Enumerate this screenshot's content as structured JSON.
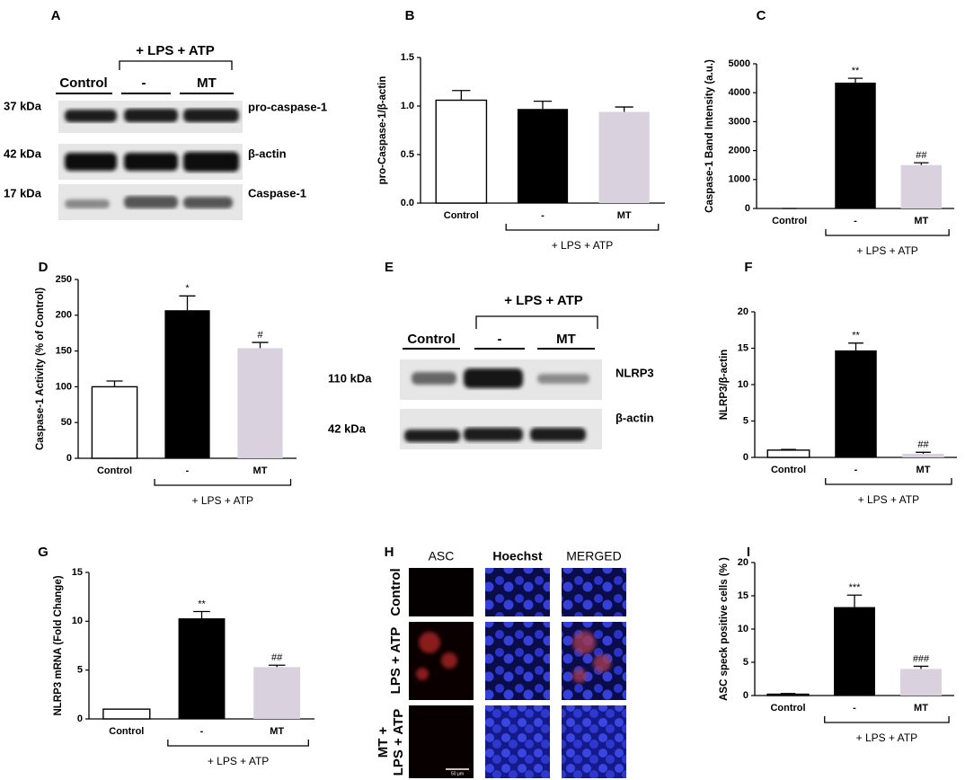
{
  "western_blot_A": {
    "panel": "A",
    "group": "+ LPS + ATP",
    "lanes": [
      "Control",
      "-",
      "MT"
    ],
    "rows": [
      {
        "size": "37 kDa",
        "protein": "pro-caspase-1"
      },
      {
        "size": "42 kDa",
        "protein": "β-actin"
      },
      {
        "size": "17 kDa",
        "protein": "Caspase-1"
      }
    ]
  },
  "western_blot_E": {
    "panel": "E",
    "group": "+ LPS + ATP",
    "lanes": [
      "Control",
      "-",
      "MT"
    ],
    "rows": [
      {
        "size": "110 kDa",
        "protein": "NLRP3"
      },
      {
        "size": "42 kDa",
        "protein": "β-actin"
      }
    ]
  },
  "microscopy_H": {
    "panel": "H",
    "columns": [
      "ASC",
      "Hoechst",
      "MERGED"
    ],
    "rows": [
      [
        "Control"
      ],
      [
        "LPS + ATP"
      ],
      [
        "MT +",
        "LPS + ATP"
      ]
    ],
    "scale_bar": "50 µm"
  },
  "chart_data": [
    {
      "type": "bar",
      "panel": "B",
      "ylabel": "pro-Caspase-1/β-actin",
      "categories": [
        "Control",
        "-",
        "MT"
      ],
      "group_label": "+ LPS + ATP",
      "values": [
        1.06,
        0.97,
        0.94
      ],
      "errors": [
        0.1,
        0.08,
        0.05
      ],
      "annotations": [
        null,
        null,
        null
      ],
      "colors": [
        "#ffffff",
        "#000000",
        "#d9d2de"
      ],
      "ylim": [
        0,
        1.5
      ],
      "yticks": [
        {
          "value": 0,
          "label": "0.0"
        },
        {
          "value": 0.5,
          "label": "0.5"
        },
        {
          "value": 1,
          "label": "1.0"
        },
        {
          "value": 1.5,
          "label": "1.5"
        }
      ]
    },
    {
      "type": "bar",
      "panel": "C",
      "ylabel": "Caspase-1 Band Intensity (a.u.)",
      "categories": [
        "Control",
        "-",
        "MT"
      ],
      "group_label": "+ LPS + ATP",
      "values": [
        0,
        4350,
        1500
      ],
      "errors": [
        0,
        150,
        80
      ],
      "annotations": [
        null,
        "**",
        "##"
      ],
      "colors": [
        "#ffffff",
        "#000000",
        "#d9d2de"
      ],
      "ylim": [
        0,
        5000
      ],
      "yticks": [
        0,
        1000,
        2000,
        3000,
        4000,
        5000
      ]
    },
    {
      "type": "bar",
      "panel": "D",
      "ylabel": "Caspase-1 Activity (% of Control)",
      "categories": [
        "Control",
        "-",
        "MT"
      ],
      "group_label": "+ LPS + ATP",
      "values": [
        100,
        207,
        154
      ],
      "errors": [
        8,
        20,
        8
      ],
      "annotations": [
        null,
        "*",
        "#"
      ],
      "colors": [
        "#ffffff",
        "#000000",
        "#d9d2de"
      ],
      "ylim": [
        0,
        250
      ],
      "yticks": [
        0,
        50,
        100,
        150,
        200,
        250
      ]
    },
    {
      "type": "bar",
      "panel": "F",
      "ylabel": "NLRP3/β-actin",
      "categories": [
        "Control",
        "-",
        "MT"
      ],
      "group_label": "+ LPS + ATP",
      "values": [
        1,
        14.7,
        0.5
      ],
      "errors": [
        0.1,
        1,
        0.2
      ],
      "annotations": [
        null,
        "**",
        "##"
      ],
      "colors": [
        "#ffffff",
        "#000000",
        "#d9d2de"
      ],
      "ylim": [
        0,
        20
      ],
      "yticks": [
        0,
        5,
        10,
        15,
        20
      ]
    },
    {
      "type": "bar",
      "panel": "G",
      "ylabel": "NLRP3 mRNA (Fold Change)",
      "categories": [
        "Control",
        "-",
        "MT"
      ],
      "group_label": "+ LPS + ATP",
      "values": [
        1,
        10.3,
        5.3
      ],
      "errors": [
        0,
        0.7,
        0.2
      ],
      "annotations": [
        null,
        "**",
        "##"
      ],
      "colors": [
        "#ffffff",
        "#000000",
        "#d9d2de"
      ],
      "ylim": [
        0,
        15
      ],
      "yticks": [
        0,
        5,
        10,
        15
      ]
    },
    {
      "type": "bar",
      "panel": "I",
      "ylabel": "ASC speck positive cells (% )",
      "categories": [
        "Control",
        "-",
        "MT"
      ],
      "group_label": "+ LPS + ATP",
      "values": [
        0.2,
        13.3,
        4
      ],
      "errors": [
        0.1,
        1.8,
        0.4
      ],
      "annotations": [
        null,
        "***",
        "###"
      ],
      "colors": [
        "#ffffff",
        "#000000",
        "#d9d2de"
      ],
      "ylim": [
        0,
        20
      ],
      "yticks": [
        0,
        5,
        10,
        15,
        20
      ]
    }
  ]
}
